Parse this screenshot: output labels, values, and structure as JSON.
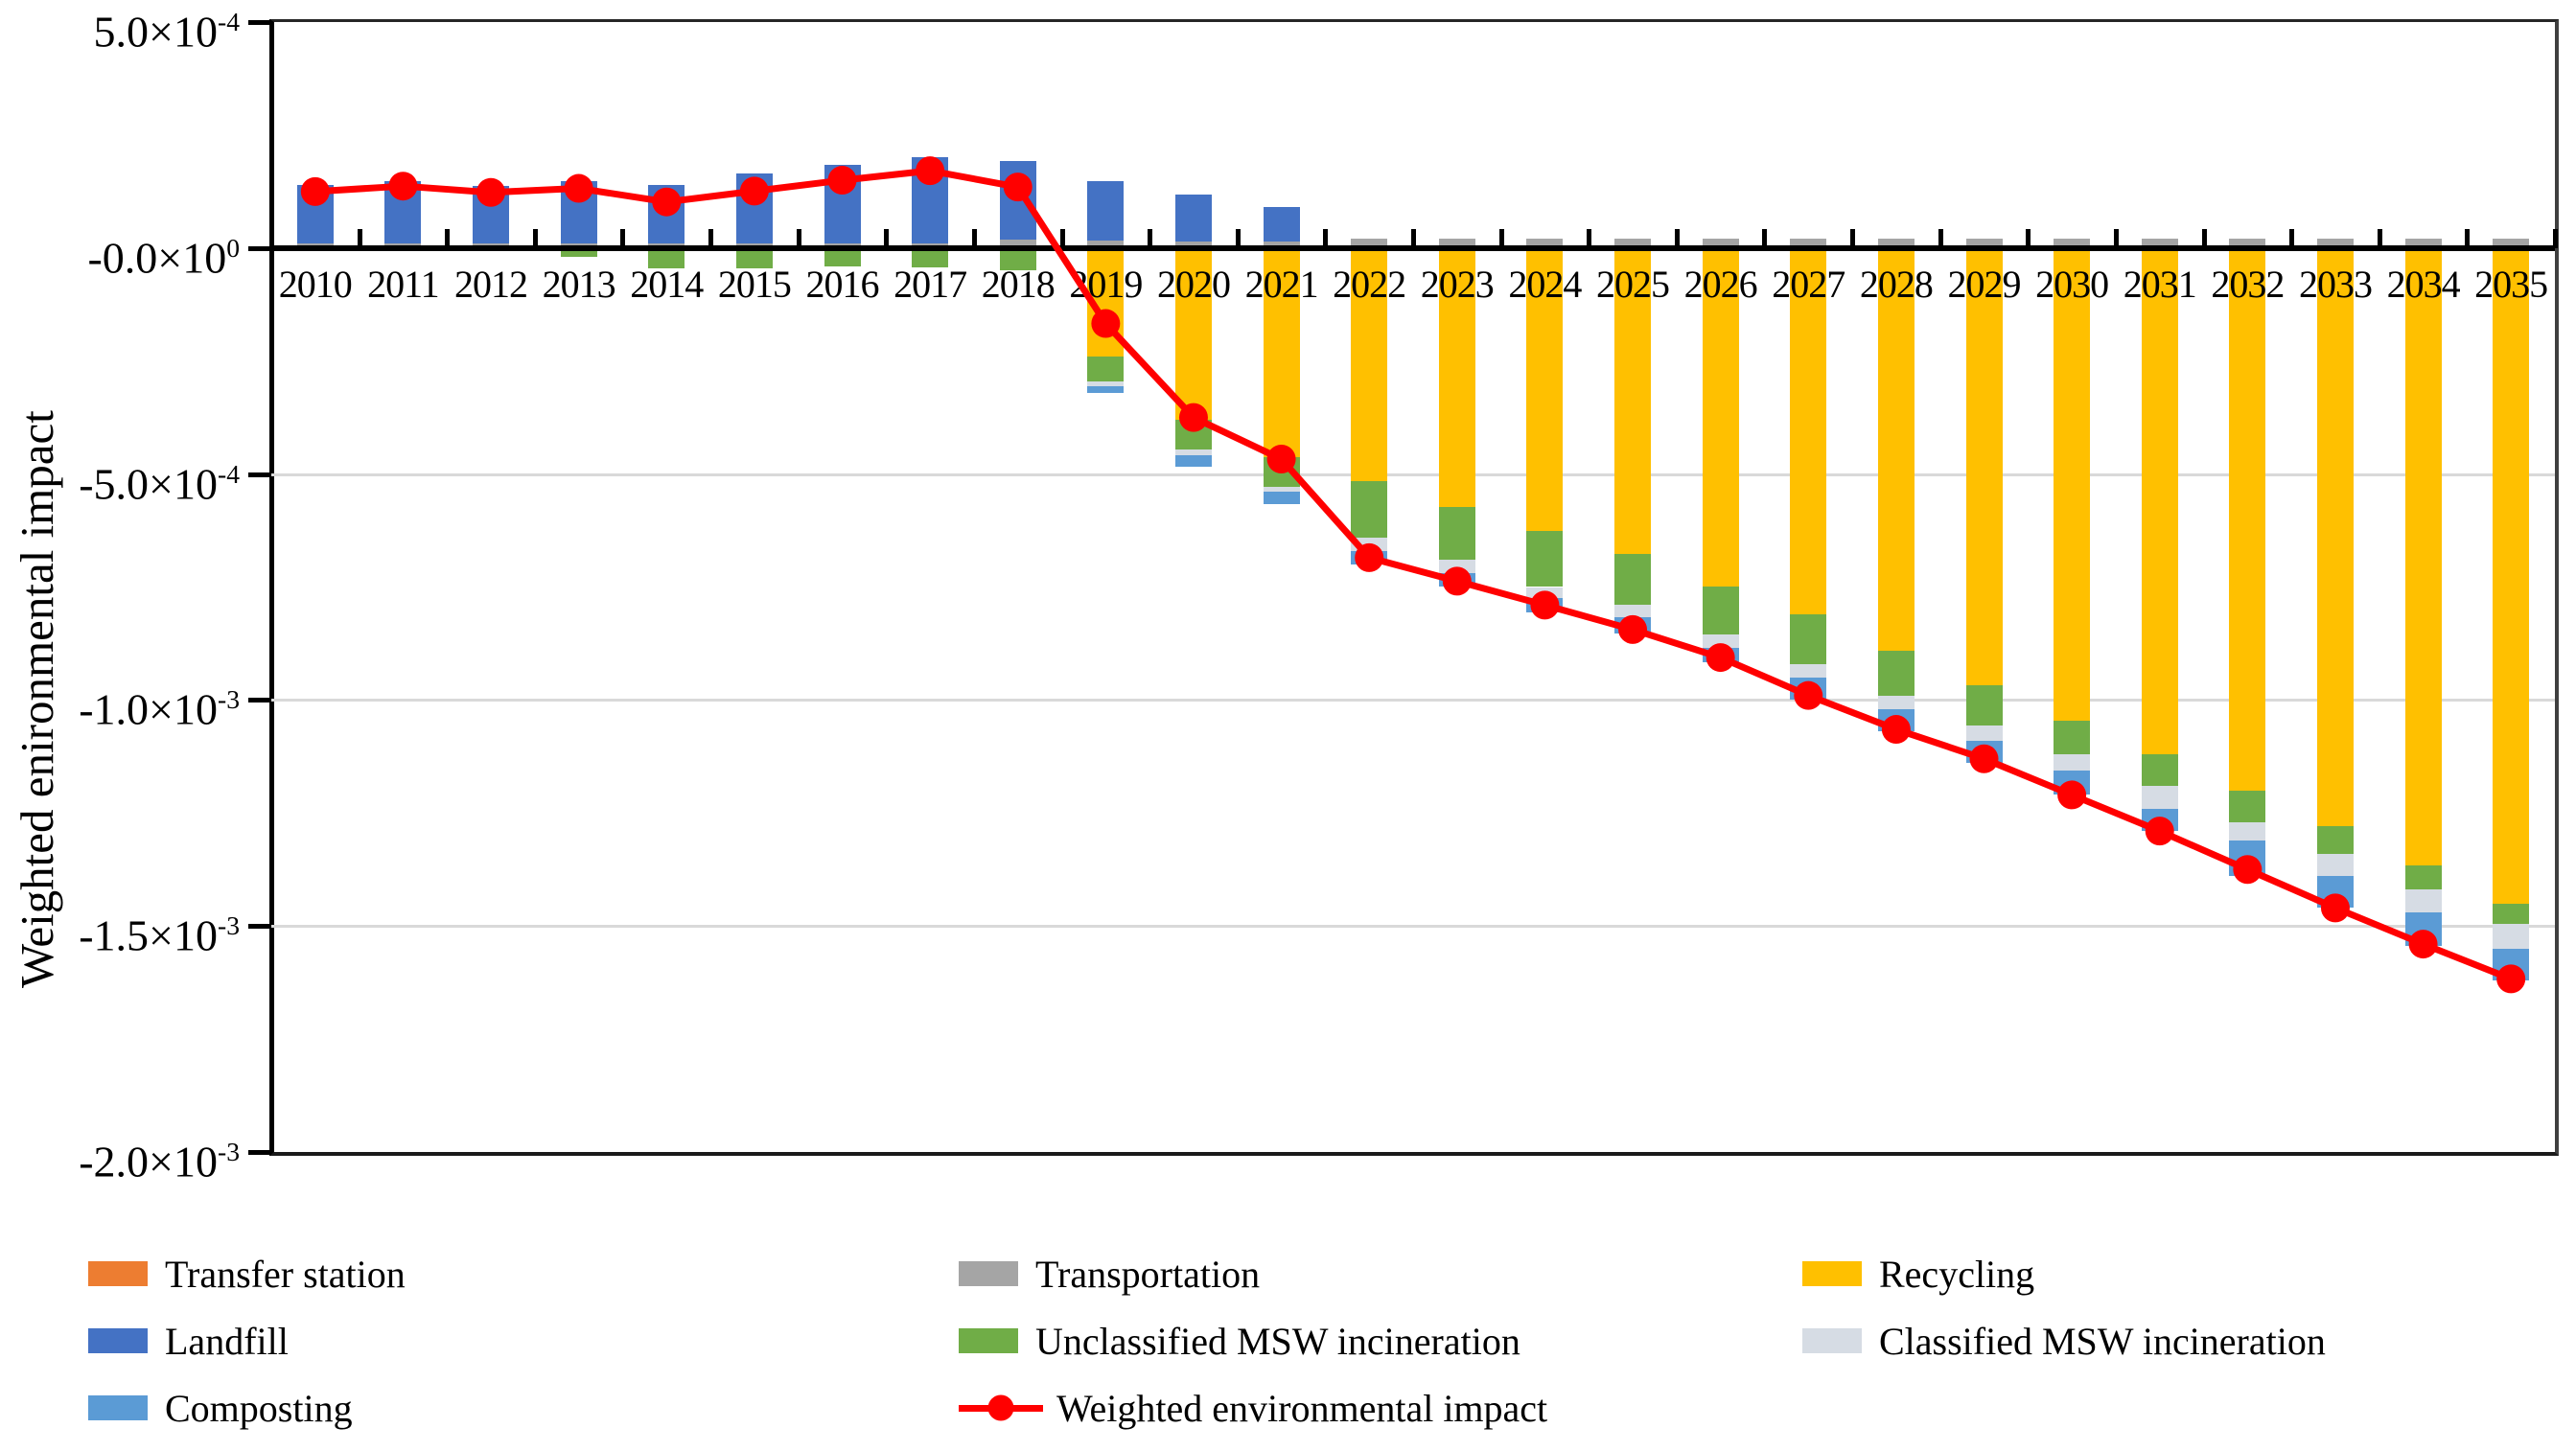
{
  "y_axis": {
    "title": "Weighted enironmental impact",
    "ticks": [
      {
        "base": "5.0×10",
        "exp": "-4",
        "value_1e4": 5
      },
      {
        "base": "-0.0×10",
        "exp": "0",
        "value_1e4": 0
      },
      {
        "base": "-5.0×10",
        "exp": "-4",
        "value_1e4": -5
      },
      {
        "base": "-1.0×10",
        "exp": "-3",
        "value_1e4": -10
      },
      {
        "base": "-1.5×10",
        "exp": "-3",
        "value_1e4": -15
      },
      {
        "base": "-2.0×10",
        "exp": "-3",
        "value_1e4": -20
      }
    ]
  },
  "x_axis": {
    "years": [
      "2010",
      "2011",
      "2012",
      "2013",
      "2014",
      "2015",
      "2016",
      "2017",
      "2018",
      "2019",
      "2020",
      "2021",
      "2022",
      "2023",
      "2024",
      "2025",
      "2026",
      "2027",
      "2028",
      "2029",
      "2030",
      "2031",
      "2032",
      "2033",
      "2034",
      "2035"
    ]
  },
  "chart_data": {
    "type": "bar",
    "subtype": "stacked-bar-with-line",
    "value_unit": "1e-4",
    "ylim_1e4": [
      -20,
      5
    ],
    "gridlines_1e4": [
      -5,
      -10,
      -15
    ],
    "grid_color": "#d9d9d9",
    "categories": [
      2010,
      2011,
      2012,
      2013,
      2014,
      2015,
      2016,
      2017,
      2018,
      2019,
      2020,
      2021,
      2022,
      2023,
      2024,
      2025,
      2026,
      2027,
      2028,
      2029,
      2030,
      2031,
      2032,
      2033,
      2034,
      2035
    ],
    "series": [
      {
        "name": "Transfer station",
        "type": "bar",
        "color": "#ED7D31",
        "values": [
          0.04,
          0.04,
          0.04,
          0.04,
          0.04,
          0.04,
          0.04,
          0.04,
          0.04,
          0.04,
          0.04,
          0.04,
          0,
          0,
          0,
          0,
          0,
          0,
          0,
          0,
          0,
          0,
          0,
          0,
          0,
          0
        ]
      },
      {
        "name": "Transportation",
        "type": "bar",
        "color": "#A5A5A5",
        "values": [
          0.06,
          0.06,
          0.06,
          0.06,
          0.06,
          0.06,
          0.06,
          0.06,
          0.15,
          0.12,
          0.1,
          0.1,
          0.2,
          0.2,
          0.2,
          0.2,
          0.2,
          0.2,
          0.2,
          0.2,
          0.2,
          0.2,
          0.2,
          0.2,
          0.2,
          0.2
        ]
      },
      {
        "name": "Landfill",
        "type": "bar",
        "color": "#4472C4",
        "values": [
          1.3,
          1.39,
          1.27,
          1.38,
          1.29,
          1.56,
          1.73,
          1.92,
          1.73,
          1.31,
          1.04,
          0.77,
          0,
          0,
          0,
          0,
          0,
          0,
          0,
          0,
          0,
          0,
          0,
          0,
          0,
          0
        ]
      },
      {
        "name": "Recycling",
        "type": "bar",
        "color": "#FFC000",
        "values": [
          0,
          0,
          0,
          0,
          0,
          0,
          0,
          0,
          0,
          -2.4,
          -3.8,
          -4.63,
          -5.15,
          -5.73,
          -6.25,
          -6.77,
          -7.48,
          -8.1,
          -8.9,
          -9.67,
          -10.46,
          -11.2,
          -12.0,
          -12.8,
          -13.65,
          -14.5
        ]
      },
      {
        "name": "Unclassified MSW incineration",
        "type": "bar",
        "color": "#70AD47",
        "values": [
          -0.03,
          -0.03,
          -0.05,
          -0.2,
          -0.45,
          -0.45,
          -0.4,
          -0.42,
          -0.5,
          -0.55,
          -0.65,
          -0.66,
          -1.25,
          -1.17,
          -1.25,
          -1.13,
          -1.06,
          -1.1,
          -1.0,
          -0.89,
          -0.74,
          -0.7,
          -0.7,
          -0.6,
          -0.55,
          -0.45
        ]
      },
      {
        "name": "Classified MSW incineration",
        "type": "bar",
        "color": "#D6DCE4",
        "values": [
          0,
          0,
          0,
          0,
          0,
          0,
          0,
          0,
          0,
          -0.11,
          -0.13,
          -0.11,
          -0.3,
          -0.3,
          -0.25,
          -0.27,
          -0.31,
          -0.3,
          -0.3,
          -0.34,
          -0.37,
          -0.5,
          -0.4,
          -0.5,
          -0.5,
          -0.55
        ]
      },
      {
        "name": "Composting",
        "type": "bar",
        "color": "#5B9BD5",
        "values": [
          0,
          0,
          0,
          0,
          0,
          0,
          0,
          0,
          0,
          -0.15,
          -0.25,
          -0.27,
          -0.3,
          -0.3,
          -0.31,
          -0.35,
          -0.32,
          -0.5,
          -0.5,
          -0.5,
          -0.53,
          -0.5,
          -0.8,
          -0.7,
          -0.75,
          -0.7
        ]
      },
      {
        "name": "Weighted environmental impact",
        "type": "line",
        "color": "#FF0000",
        "values": [
          1.25,
          1.37,
          1.23,
          1.32,
          1.02,
          1.26,
          1.5,
          1.71,
          1.35,
          -1.67,
          -3.75,
          -4.67,
          -6.85,
          -7.37,
          -7.9,
          -8.44,
          -9.06,
          -9.9,
          -10.65,
          -11.3,
          -12.1,
          -12.9,
          -13.75,
          -14.6,
          -15.4,
          -16.17
        ]
      }
    ]
  },
  "legend": {
    "columns": [
      {
        "items": [
          {
            "label": "Transfer station",
            "color": "#ED7D31",
            "marker": "rect"
          },
          {
            "label": "Landfill",
            "color": "#4472C4",
            "marker": "rect"
          },
          {
            "label": "Composting",
            "color": "#5B9BD5",
            "marker": "rect"
          }
        ]
      },
      {
        "items": [
          {
            "label": "Transportation",
            "color": "#A5A5A5",
            "marker": "rect"
          },
          {
            "label": "Unclassified MSW incineration",
            "color": "#70AD47",
            "marker": "rect"
          },
          {
            "label": "Weighted environmental impact",
            "color": "#FF0000",
            "marker": "line"
          }
        ]
      },
      {
        "items": [
          {
            "label": "Recycling",
            "color": "#FFC000",
            "marker": "rect"
          },
          {
            "label": "Classified MSW incineration",
            "color": "#D6DCE4",
            "marker": "rect"
          }
        ]
      }
    ]
  },
  "colors": {
    "axis": "#000000",
    "frame": "#3f3f3f",
    "gridline": "#d9d9d9",
    "line": "#FF0000"
  }
}
